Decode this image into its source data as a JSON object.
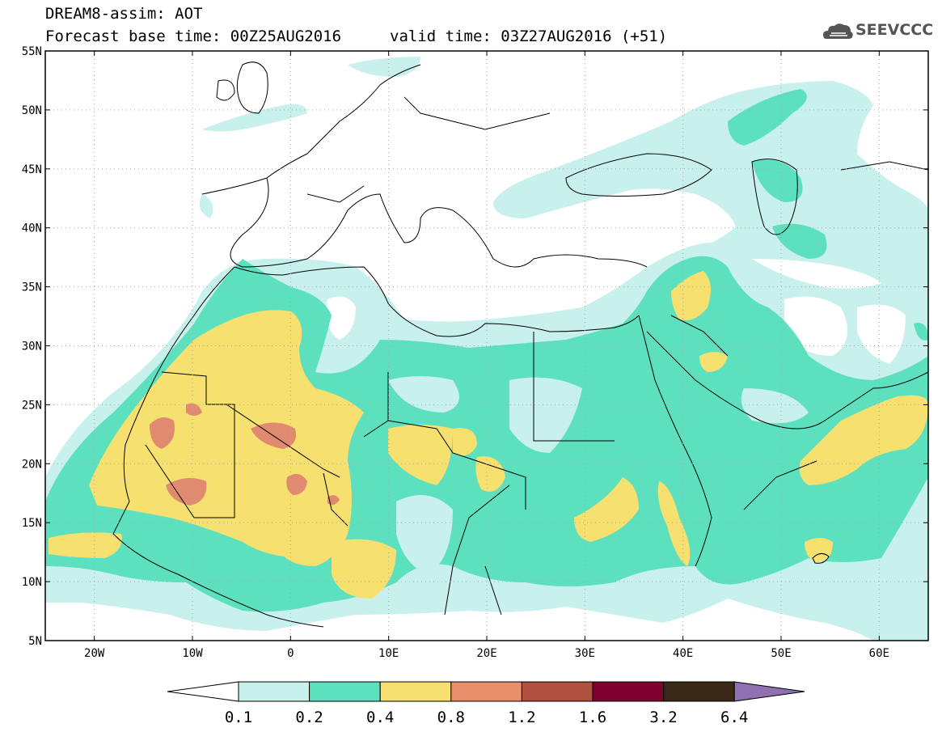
{
  "header": {
    "title": "DREAM8-assim: AOT",
    "base_time_label": "Forecast base time: 00Z25AUG2016",
    "valid_time_label": "valid time: 03Z27AUG2016 (+51)"
  },
  "logo": {
    "text": "SEEVCCC",
    "icon": "cloud-icon"
  },
  "map": {
    "lon_range": [
      -25,
      65
    ],
    "lat_range": [
      5,
      55
    ],
    "lat_ticks": [
      "5N",
      "10N",
      "15N",
      "20N",
      "25N",
      "30N",
      "35N",
      "40N",
      "45N",
      "50N",
      "55N"
    ],
    "lon_ticks": [
      "20W",
      "10W",
      "0",
      "10E",
      "20E",
      "30E",
      "40E",
      "50E",
      "60E"
    ],
    "grid": "dotted"
  },
  "colorbar": {
    "levels": [
      "0.1",
      "0.2",
      "0.4",
      "0.8",
      "1.2",
      "1.6",
      "3.2",
      "6.4"
    ],
    "colors": [
      "#c8f0ec",
      "#5ce0be",
      "#f5e070",
      "#e88e6a",
      "#b05040",
      "#800030",
      "#3a2818",
      "#9070b0"
    ]
  },
  "legend_colors": {
    "low": "#c8f0ec",
    "mid": "#5ce0be",
    "high": "#f5e070",
    "very_high": "#e08a70"
  }
}
